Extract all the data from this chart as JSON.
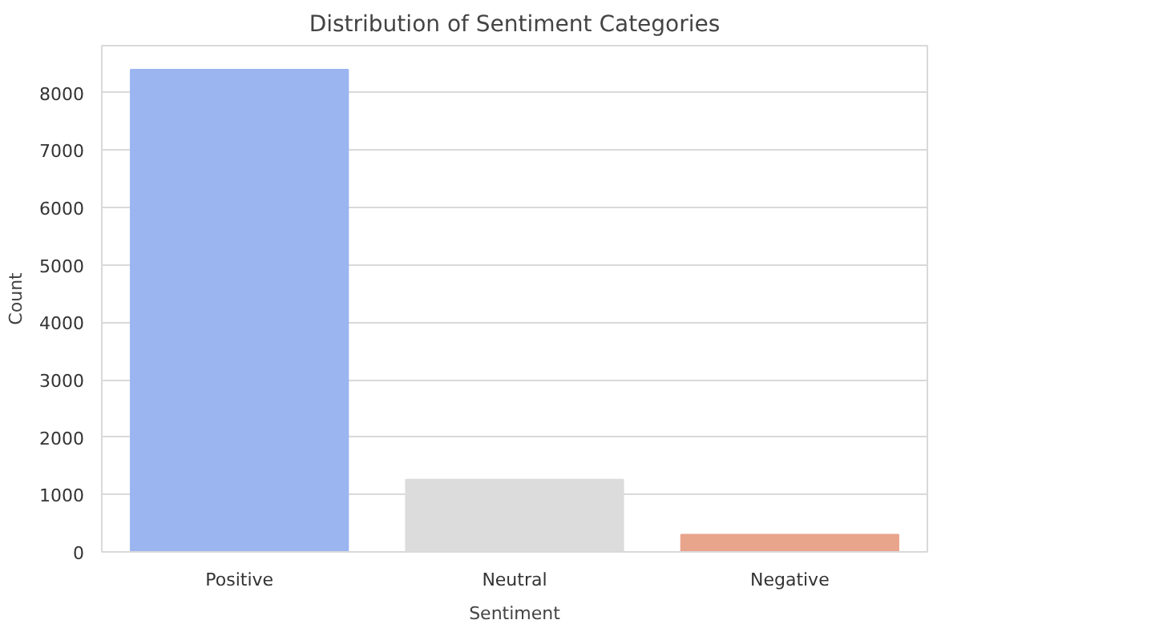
{
  "chart_data": {
    "type": "bar",
    "title": "Distribution of Sentiment Categories",
    "xlabel": "Sentiment",
    "ylabel": "Count",
    "categories": [
      "Positive",
      "Neutral",
      "Negative"
    ],
    "values": [
      8400,
      1260,
      300
    ],
    "colors": [
      "#9bb5f0",
      "#dcdcdc",
      "#e9a48c"
    ],
    "ylim": [
      0,
      8820
    ],
    "yticks": [
      0,
      1000,
      2000,
      3000,
      4000,
      5000,
      6000,
      7000,
      8000
    ],
    "grid": "y"
  }
}
